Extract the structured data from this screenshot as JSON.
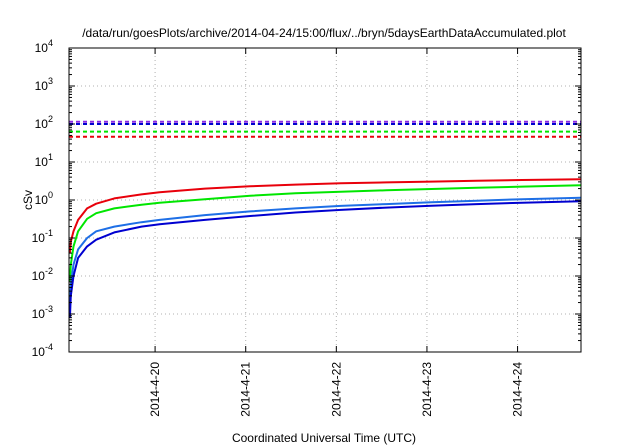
{
  "chart_data": {
    "type": "line",
    "title": "/data/run/goesPlots/archive/2014-04-24/15:00/flux/../bryn/5daysEarthDataAccumulated.plot",
    "xlabel": "Coordinated Universal Time (UTC)",
    "ylabel": "cSv",
    "yscale": "log",
    "ylim": [
      0.0001,
      10000
    ],
    "xlim_days": [
      0,
      5.65
    ],
    "grid": true,
    "x_ticks": [
      {
        "label": "2014-4-20",
        "day": 0.95
      },
      {
        "label": "2014-4-21",
        "day": 1.95
      },
      {
        "label": "2014-4-22",
        "day": 2.95
      },
      {
        "label": "2014-4-23",
        "day": 3.95
      },
      {
        "label": "2014-4-24",
        "day": 4.95
      }
    ],
    "y_ticks": [
      {
        "base": "10",
        "exp": "-4",
        "value": 0.0001
      },
      {
        "base": "10",
        "exp": "-3",
        "value": 0.001
      },
      {
        "base": "10",
        "exp": "-2",
        "value": 0.01
      },
      {
        "base": "10",
        "exp": "-1",
        "value": 0.1
      },
      {
        "base": "10",
        "exp": "0",
        "value": 1
      },
      {
        "base": "10",
        "exp": "1",
        "value": 10
      },
      {
        "base": "10",
        "exp": "2",
        "value": 100
      },
      {
        "base": "10",
        "exp": "3",
        "value": 1000
      },
      {
        "base": "10",
        "exp": "4",
        "value": 10000
      }
    ],
    "series": [
      {
        "color": "#e8000b",
        "style": "solid",
        "x": [
          0.01,
          0.02,
          0.05,
          0.1,
          0.2,
          0.3,
          0.5,
          0.8,
          1.0,
          1.5,
          2.0,
          2.5,
          3.0,
          3.5,
          4.0,
          4.5,
          5.0,
          5.65
        ],
        "values": [
          0.04,
          0.08,
          0.15,
          0.3,
          0.6,
          0.8,
          1.1,
          1.4,
          1.6,
          2.0,
          2.3,
          2.55,
          2.75,
          2.9,
          3.05,
          3.2,
          3.35,
          3.5
        ]
      },
      {
        "color": "#00e600",
        "style": "solid",
        "x": [
          0.01,
          0.02,
          0.05,
          0.1,
          0.2,
          0.3,
          0.5,
          0.8,
          1.0,
          1.5,
          2.0,
          2.5,
          3.0,
          3.5,
          4.0,
          4.5,
          5.0,
          5.65
        ],
        "values": [
          0.007,
          0.02,
          0.06,
          0.15,
          0.32,
          0.45,
          0.6,
          0.75,
          0.85,
          1.05,
          1.3,
          1.5,
          1.65,
          1.8,
          1.95,
          2.1,
          2.25,
          2.45
        ]
      },
      {
        "color": "#1e6fe6",
        "style": "solid",
        "x": [
          0.01,
          0.02,
          0.05,
          0.1,
          0.2,
          0.3,
          0.5,
          0.8,
          1.0,
          1.5,
          2.0,
          2.5,
          3.0,
          3.5,
          4.0,
          4.5,
          5.0,
          5.65
        ],
        "values": [
          0.002,
          0.006,
          0.02,
          0.05,
          0.1,
          0.15,
          0.2,
          0.26,
          0.3,
          0.4,
          0.5,
          0.6,
          0.7,
          0.78,
          0.87,
          0.96,
          1.05,
          1.15
        ]
      },
      {
        "color": "#0000d0",
        "style": "solid",
        "x": [
          0.01,
          0.02,
          0.05,
          0.1,
          0.2,
          0.3,
          0.5,
          0.8,
          1.0,
          1.5,
          2.0,
          2.5,
          3.0,
          3.5,
          4.0,
          4.5,
          5.0,
          5.65
        ],
        "values": [
          0.0008,
          0.003,
          0.01,
          0.03,
          0.06,
          0.09,
          0.14,
          0.2,
          0.23,
          0.3,
          0.38,
          0.47,
          0.55,
          0.63,
          0.71,
          0.78,
          0.85,
          0.93
        ]
      },
      {
        "color": "#8a2be2",
        "style": "dashed",
        "x": [
          0,
          5.65
        ],
        "values": [
          115,
          115
        ]
      },
      {
        "color": "#0000d0",
        "style": "dashed",
        "x": [
          0,
          5.65
        ],
        "values": [
          100,
          100
        ]
      },
      {
        "color": "#00e600",
        "style": "dashed",
        "x": [
          0,
          5.65
        ],
        "values": [
          63,
          63
        ]
      },
      {
        "color": "#e8000b",
        "style": "dashed",
        "x": [
          0,
          5.65
        ],
        "values": [
          46,
          46
        ]
      }
    ]
  }
}
